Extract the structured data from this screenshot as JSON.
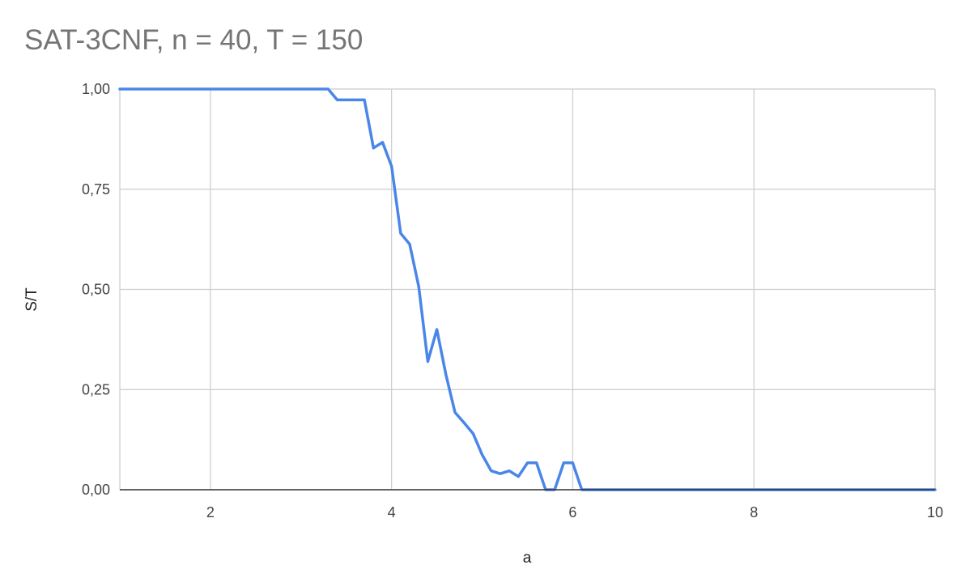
{
  "chart_data": {
    "type": "line",
    "title": "SAT-3CNF, n = 40, T = 150",
    "xlabel": "a",
    "ylabel": "S/T",
    "xlim": [
      1,
      10
    ],
    "ylim": [
      0,
      1
    ],
    "x_ticks": [
      2,
      4,
      6,
      8,
      10
    ],
    "x_tick_labels": [
      "2",
      "4",
      "6",
      "8",
      "10"
    ],
    "y_ticks": [
      0,
      0.25,
      0.5,
      0.75,
      1.0
    ],
    "y_tick_labels": [
      "0,00",
      "0,25",
      "0,50",
      "0,75",
      "1,00"
    ],
    "grid": true,
    "legend": "none",
    "series": [
      {
        "color": "#4a86e8",
        "points": [
          [
            1.0,
            1.0
          ],
          [
            3.3,
            1.0
          ],
          [
            3.4,
            0.973
          ],
          [
            3.5,
            0.973
          ],
          [
            3.6,
            0.973
          ],
          [
            3.7,
            0.973
          ],
          [
            3.8,
            0.853
          ],
          [
            3.9,
            0.867
          ],
          [
            4.0,
            0.807
          ],
          [
            4.1,
            0.64
          ],
          [
            4.2,
            0.613
          ],
          [
            4.3,
            0.507
          ],
          [
            4.4,
            0.32
          ],
          [
            4.5,
            0.4
          ],
          [
            4.6,
            0.287
          ],
          [
            4.7,
            0.193
          ],
          [
            4.8,
            0.167
          ],
          [
            4.9,
            0.14
          ],
          [
            5.0,
            0.087
          ],
          [
            5.1,
            0.047
          ],
          [
            5.2,
            0.04
          ],
          [
            5.3,
            0.047
          ],
          [
            5.4,
            0.033
          ],
          [
            5.5,
            0.067
          ],
          [
            5.6,
            0.067
          ],
          [
            5.7,
            0.0
          ],
          [
            5.8,
            0.0
          ],
          [
            5.9,
            0.067
          ],
          [
            6.0,
            0.067
          ],
          [
            6.1,
            0.0
          ],
          [
            10.0,
            0.0
          ]
        ]
      }
    ]
  }
}
